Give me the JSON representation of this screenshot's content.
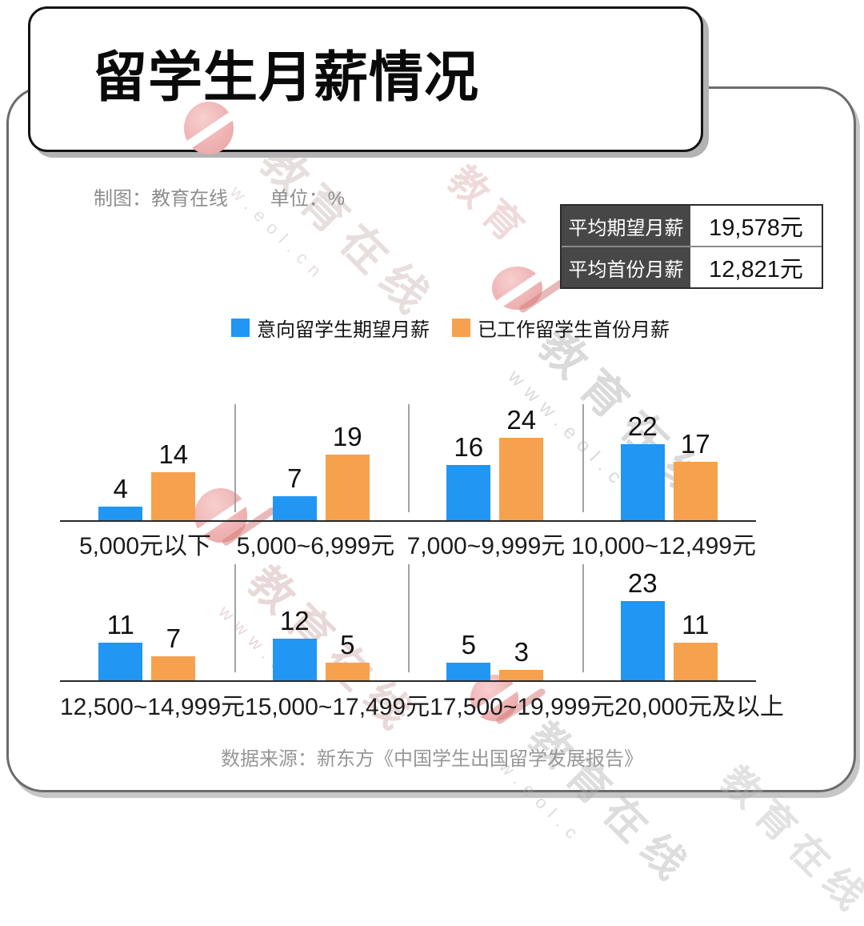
{
  "title": "留学生月薪情况",
  "meta": {
    "credit": "制图：教育在线",
    "unit_label": "单位：%"
  },
  "summary_table": {
    "rows": [
      {
        "label": "平均期望月薪",
        "value": "19,578元"
      },
      {
        "label": "平均首份月薪",
        "value": "12,821元"
      }
    ]
  },
  "legend": {
    "items": [
      {
        "label": "意向留学生期望月薪",
        "color": "#2196F3"
      },
      {
        "label": "已工作留学生首份月薪",
        "color": "#F6A14D"
      }
    ]
  },
  "chart_data": {
    "type": "bar",
    "unit": "%",
    "title": "留学生月薪情况",
    "categories": [
      "5,000元以下",
      "5,000~6,999元",
      "7,000~9,999元",
      "10,000~12,499元",
      "12,500~14,999元",
      "15,000~17,499元",
      "17,500~19,999元",
      "20,000元及以上"
    ],
    "series": [
      {
        "name": "意向留学生期望月薪",
        "color": "#2196F3",
        "values": [
          4,
          7,
          16,
          22,
          11,
          12,
          5,
          23
        ]
      },
      {
        "name": "已工作留学生首份月薪",
        "color": "#F6A14D",
        "values": [
          14,
          19,
          24,
          17,
          7,
          5,
          3,
          11
        ]
      }
    ],
    "value_labels": true,
    "ylim": [
      0,
      24
    ],
    "layout": {
      "rows": 2,
      "groups_per_row": 4,
      "gridlines": false,
      "legend_position": "top"
    }
  },
  "source": "数据来源：新东方《中国学生出国留学发展报告》",
  "watermark": {
    "brand": "教育在线",
    "url": "www.eol.cn"
  },
  "colors": {
    "bar_blue": "#2196F3",
    "bar_orange": "#F6A14D",
    "table_header_bg": "#474747",
    "muted_text": "#8E8E8E",
    "frame_border": "#6B6B6B",
    "title_border": "#141414",
    "baseline": "#2A2A2A"
  }
}
